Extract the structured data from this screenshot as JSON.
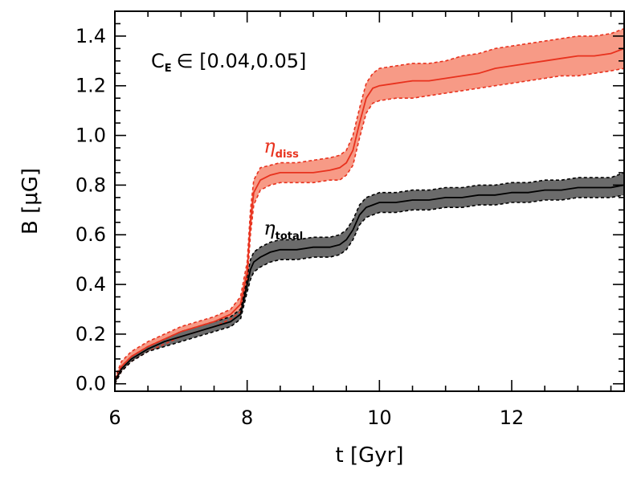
{
  "chart_data": {
    "type": "line",
    "xlabel": "t [Gyr]",
    "ylabel": "B [μG]",
    "xlim": [
      6,
      13.7
    ],
    "ylim": [
      -0.03,
      1.5
    ],
    "xticks": [
      6,
      8,
      10,
      12
    ],
    "xtick_labels": [
      "6",
      "8",
      "10",
      "12"
    ],
    "yticks": [
      0.0,
      0.2,
      0.4,
      0.6,
      0.8,
      1.0,
      1.2,
      1.4
    ],
    "ytick_labels": [
      "0.0",
      "0.2",
      "0.4",
      "0.6",
      "0.8",
      "1.0",
      "1.2",
      "1.4"
    ],
    "annotation": {
      "ce_symbol": "C",
      "ce_subscript": "E",
      "ce_text": "∈ [0.04,0.05]"
    },
    "x": [
      6.0,
      6.1,
      6.25,
      6.5,
      6.75,
      7.0,
      7.25,
      7.5,
      7.75,
      7.9,
      8.0,
      8.05,
      8.1,
      8.2,
      8.35,
      8.5,
      8.75,
      9.0,
      9.25,
      9.4,
      9.5,
      9.6,
      9.7,
      9.8,
      9.9,
      10.0,
      10.25,
      10.5,
      10.75,
      11.0,
      11.25,
      11.5,
      11.75,
      12.0,
      12.25,
      12.5,
      12.75,
      13.0,
      13.25,
      13.5,
      13.7
    ],
    "series": [
      {
        "name": "eta_diss",
        "label_symbol": "η",
        "label_sub": "diss",
        "color": "#e8321e",
        "band_color": "#f79a86",
        "mean": [
          0.01,
          0.07,
          0.11,
          0.15,
          0.18,
          0.21,
          0.23,
          0.25,
          0.28,
          0.32,
          0.45,
          0.65,
          0.77,
          0.82,
          0.84,
          0.85,
          0.85,
          0.85,
          0.86,
          0.87,
          0.89,
          0.94,
          1.05,
          1.15,
          1.19,
          1.2,
          1.21,
          1.22,
          1.22,
          1.23,
          1.24,
          1.25,
          1.27,
          1.28,
          1.29,
          1.3,
          1.31,
          1.32,
          1.32,
          1.33,
          1.35
        ],
        "upper": [
          0.02,
          0.09,
          0.13,
          0.17,
          0.2,
          0.23,
          0.25,
          0.27,
          0.3,
          0.35,
          0.49,
          0.7,
          0.82,
          0.87,
          0.88,
          0.89,
          0.89,
          0.9,
          0.91,
          0.92,
          0.94,
          1.0,
          1.11,
          1.21,
          1.25,
          1.27,
          1.28,
          1.29,
          1.29,
          1.3,
          1.32,
          1.33,
          1.35,
          1.36,
          1.37,
          1.38,
          1.39,
          1.4,
          1.4,
          1.41,
          1.43
        ],
        "lower": [
          0.0,
          0.05,
          0.09,
          0.13,
          0.16,
          0.19,
          0.21,
          0.23,
          0.26,
          0.29,
          0.41,
          0.6,
          0.72,
          0.78,
          0.8,
          0.81,
          0.81,
          0.81,
          0.82,
          0.82,
          0.84,
          0.88,
          0.99,
          1.09,
          1.13,
          1.14,
          1.15,
          1.15,
          1.16,
          1.17,
          1.18,
          1.19,
          1.2,
          1.21,
          1.22,
          1.23,
          1.24,
          1.24,
          1.25,
          1.26,
          1.27
        ]
      },
      {
        "name": "eta_total",
        "label_symbol": "η",
        "label_sub": "total",
        "color": "#000000",
        "band_color": "#6b6b6b",
        "mean": [
          0.01,
          0.06,
          0.1,
          0.14,
          0.17,
          0.19,
          0.21,
          0.23,
          0.25,
          0.28,
          0.4,
          0.46,
          0.49,
          0.51,
          0.53,
          0.54,
          0.54,
          0.55,
          0.55,
          0.56,
          0.58,
          0.62,
          0.68,
          0.71,
          0.72,
          0.73,
          0.73,
          0.74,
          0.74,
          0.75,
          0.75,
          0.76,
          0.76,
          0.77,
          0.77,
          0.78,
          0.78,
          0.79,
          0.79,
          0.79,
          0.8
        ],
        "upper": [
          0.02,
          0.07,
          0.11,
          0.15,
          0.18,
          0.21,
          0.23,
          0.25,
          0.27,
          0.3,
          0.43,
          0.5,
          0.53,
          0.55,
          0.57,
          0.58,
          0.58,
          0.59,
          0.59,
          0.6,
          0.62,
          0.66,
          0.72,
          0.75,
          0.76,
          0.77,
          0.77,
          0.78,
          0.78,
          0.79,
          0.79,
          0.8,
          0.8,
          0.81,
          0.81,
          0.82,
          0.82,
          0.83,
          0.83,
          0.83,
          0.85
        ],
        "lower": [
          0.0,
          0.05,
          0.09,
          0.13,
          0.15,
          0.17,
          0.19,
          0.21,
          0.23,
          0.26,
          0.37,
          0.42,
          0.45,
          0.47,
          0.49,
          0.5,
          0.5,
          0.51,
          0.51,
          0.52,
          0.54,
          0.58,
          0.64,
          0.67,
          0.68,
          0.69,
          0.69,
          0.7,
          0.7,
          0.71,
          0.71,
          0.72,
          0.72,
          0.73,
          0.73,
          0.74,
          0.74,
          0.75,
          0.75,
          0.75,
          0.76
        ]
      }
    ],
    "series_labels": [
      {
        "series": "eta_diss",
        "at_x": 8.25,
        "at_y": 0.93
      },
      {
        "series": "eta_total",
        "at_x": 8.25,
        "at_y": 0.6
      }
    ]
  }
}
